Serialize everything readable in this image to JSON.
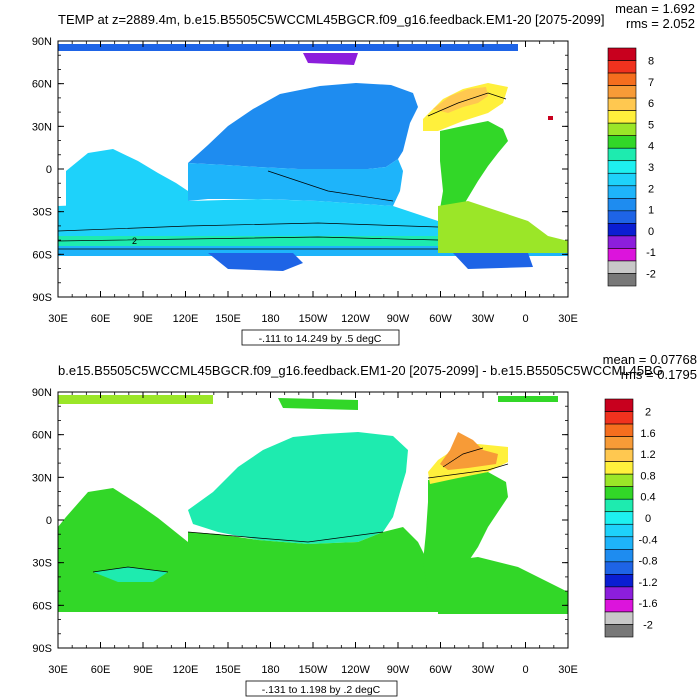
{
  "chart_data": [
    {
      "type": "heatmap",
      "title": "TEMP at z=2889.4m, b.e15.B5505C5WCCML45BGCR.f09_g16.feedback.EM1-20 [2075-2099]",
      "stat_mean": "mean = 1.692",
      "stat_rms": "rms = 2.052",
      "contour_info": "-.111 to 14.249 by .5 degC",
      "x_ticks": [
        "30E",
        "60E",
        "90E",
        "120E",
        "150E",
        "180",
        "150W",
        "120W",
        "90W",
        "60W",
        "30W",
        "0",
        "30E"
      ],
      "y_ticks": [
        "90N",
        "60N",
        "30N",
        "0",
        "30S",
        "60S",
        "90S"
      ],
      "colorbar_labels": [
        "8",
        "7",
        "6",
        "5",
        "4",
        "3",
        "2",
        "1",
        "0",
        "-1",
        "-2"
      ],
      "colorbar_colors": [
        "#C8001E",
        "#F0321E",
        "#F56E1E",
        "#F79B37",
        "#FFC850",
        "#FFF03C",
        "#9BE628",
        "#32D728",
        "#1EEBAF",
        "#1EF0F0",
        "#1ED2FA",
        "#1EB4FA",
        "#1E8CF0",
        "#1E64E6",
        "#0A1ED2",
        "#8C1EDC",
        "#DC14DC",
        "#C8C8C8",
        "#787878"
      ],
      "contour_labels": [
        "2"
      ]
    },
    {
      "type": "heatmap",
      "title": "b.e15.B5505C5WCCML45BGCR.f09_g16.feedback.EM1-20 [2075-2099] - b.e15.B5505C5WCCML45BG",
      "stat_mean": "mean = 0.07768",
      "stat_rms": "rms = 0.1795",
      "contour_info": "-.131 to 1.198 by .2 degC",
      "x_ticks": [
        "30E",
        "60E",
        "90E",
        "120E",
        "150E",
        "180",
        "150W",
        "120W",
        "90W",
        "60W",
        "30W",
        "0",
        "30E"
      ],
      "y_ticks": [
        "90N",
        "60N",
        "30N",
        "0",
        "30S",
        "60S",
        "90S"
      ],
      "colorbar_labels": [
        "2",
        "1.6",
        "1.2",
        "0.8",
        "0.4",
        "0",
        "-0.4",
        "-0.8",
        "-1.2",
        "-1.6",
        "-2"
      ],
      "colorbar_colors": [
        "#C8001E",
        "#F0321E",
        "#F56E1E",
        "#F79B37",
        "#FFC850",
        "#FFF03C",
        "#9BE628",
        "#32D728",
        "#1EEBAF",
        "#1EF0F0",
        "#1ED2FA",
        "#1EB4FA",
        "#1E8CF0",
        "#1E64E6",
        "#0A1ED2",
        "#8C1EDC",
        "#DC14DC",
        "#C8C8C8",
        "#787878"
      ]
    }
  ]
}
